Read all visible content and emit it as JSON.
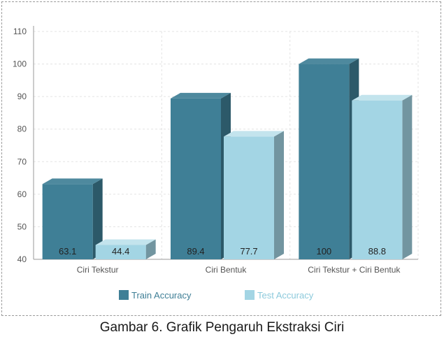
{
  "caption": "Gambar 6. Grafik Pengaruh Ekstraksi Ciri",
  "chart_data": {
    "type": "bar",
    "title": "",
    "xlabel": "",
    "ylabel": "",
    "categories": [
      "Ciri Tekstur",
      "Ciri Bentuk",
      "Ciri Tekstur + Ciri Bentuk"
    ],
    "series": [
      {
        "name": "Train Accuracy",
        "values": [
          63.1,
          89.4,
          100
        ],
        "labels": [
          "63.1",
          "89.4",
          "100"
        ],
        "color": "#3f7f96"
      },
      {
        "name": "Test Accuracy",
        "values": [
          44.4,
          77.7,
          88.8
        ],
        "labels": [
          "44.4",
          "77.7",
          "88.8"
        ],
        "color": "#a3d5e4"
      }
    ],
    "ylim": [
      40,
      110
    ],
    "yticks": [
      "40",
      "50",
      "60",
      "70",
      "80",
      "90",
      "100",
      "110"
    ],
    "grid": true,
    "legend_position": "bottom",
    "style": "3d-bar"
  }
}
